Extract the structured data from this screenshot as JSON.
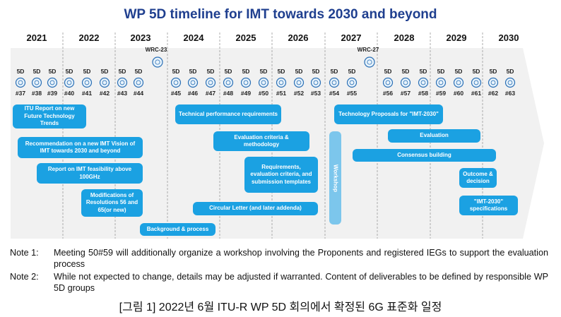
{
  "title": "WP 5D timeline for IMT towards 2030 and beyond",
  "years": [
    "2021",
    "2022",
    "2023",
    "2024",
    "2025",
    "2026",
    "2027",
    "2028",
    "2029",
    "2030"
  ],
  "wrc": [
    "WRC-23",
    "WRC-27"
  ],
  "meetings": [
    {
      "group": "5D",
      "number": "#37"
    },
    {
      "group": "5D",
      "number": "#38"
    },
    {
      "group": "5D",
      "number": "#39"
    },
    {
      "group": "5D",
      "number": "#40"
    },
    {
      "group": "5D",
      "number": "#41"
    },
    {
      "group": "5D",
      "number": "#42"
    },
    {
      "group": "5D",
      "number": "#43"
    },
    {
      "group": "5D",
      "number": "#44"
    },
    {
      "group": "5D",
      "number": "#45"
    },
    {
      "group": "5D",
      "number": "#46"
    },
    {
      "group": "5D",
      "number": "#47"
    },
    {
      "group": "5D",
      "number": "#48"
    },
    {
      "group": "5D",
      "number": "#49"
    },
    {
      "group": "5D",
      "number": "#50"
    },
    {
      "group": "5D",
      "number": "#51"
    },
    {
      "group": "5D",
      "number": "#52"
    },
    {
      "group": "5D",
      "number": "#53"
    },
    {
      "group": "5D",
      "number": "#54"
    },
    {
      "group": "5D",
      "number": "#55"
    },
    {
      "group": "5D",
      "number": "#56"
    },
    {
      "group": "5D",
      "number": "#57"
    },
    {
      "group": "5D",
      "number": "#58"
    },
    {
      "group": "5D",
      "number": "#59"
    },
    {
      "group": "5D",
      "number": "#60"
    },
    {
      "group": "5D",
      "number": "#61"
    },
    {
      "group": "5D",
      "number": "#62"
    },
    {
      "group": "5D",
      "number": "#63"
    }
  ],
  "activities": [
    "ITU Report on new Future Technology Trends",
    "Recommendation on a new IMT Vision of IMT towards 2030 and beyond",
    "Report on IMT feasibility above 100GHz",
    "Modifications of Resolutions 56 and 65(or new)",
    "Background & process",
    "Technical performance requirements",
    "Evaluation criteria & methodology",
    "Requirements, evaluation criteria, and submission templates",
    "Circular Letter (and later addenda)",
    "Workshop",
    "Technology Proposals for \"IMT-2030\"",
    "Evaluation",
    "Consensus building",
    "Outcome & decision",
    "\"IMT-2030\" specifications"
  ],
  "notes": [
    {
      "label": "Note 1:",
      "text": "Meeting 50#59 will additionally organize a workshop involving the Proponents and registered IEGs to support the evaluation process"
    },
    {
      "label": "Note 2:",
      "text": "While not expected to change, details may be adjusted if warranted. Content of deliverables to be defined by responsible WP 5D groups"
    }
  ],
  "caption": "[그림 1] 2022년 6월 ITU-R WP 5D 회의에서 확정된 6G 표준화 일정"
}
